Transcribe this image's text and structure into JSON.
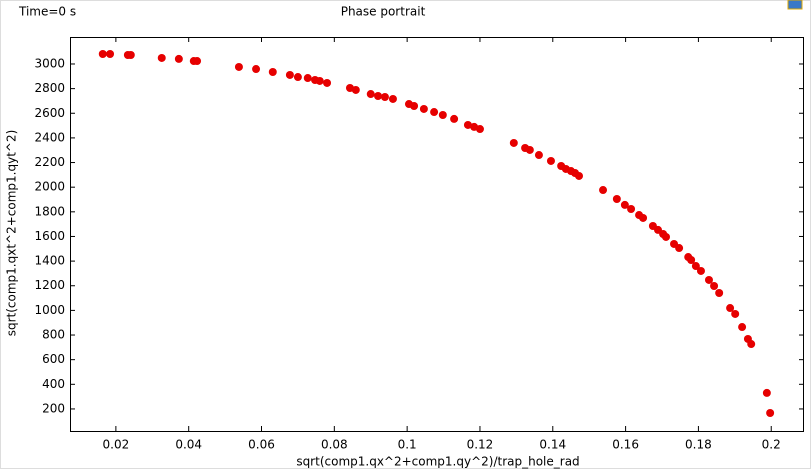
{
  "chart_data": {
    "type": "scatter",
    "title": "Phase portrait",
    "subtitle": "Time=0 s",
    "x_label": "sqrt(comp1.qx^2+comp1.qy^2)/trap_hole_rad",
    "y_label": "sqrt(comp1.qxt^2+comp1.qyt^2)",
    "color": "#e60000",
    "x": [
      0.0164,
      0.0184,
      0.0233,
      0.0241,
      0.0326,
      0.0373,
      0.0414,
      0.0423,
      0.0538,
      0.0585,
      0.0631,
      0.0678,
      0.07,
      0.0727,
      0.0747,
      0.076,
      0.078,
      0.0843,
      0.0859,
      0.09,
      0.092,
      0.0939,
      0.0961,
      0.1005,
      0.1019,
      0.1046,
      0.1074,
      0.1098,
      0.1129,
      0.1167,
      0.1184,
      0.12,
      0.1293,
      0.1324,
      0.1337,
      0.1362,
      0.1395,
      0.1423,
      0.1436,
      0.145,
      0.1461,
      0.1472,
      0.1538,
      0.1576,
      0.1598,
      0.1615,
      0.1637,
      0.1648,
      0.1675,
      0.1689,
      0.1703,
      0.1711,
      0.1733,
      0.1747,
      0.1772,
      0.178,
      0.1793,
      0.1807,
      0.1829,
      0.1843,
      0.1857,
      0.1887,
      0.1901,
      0.192,
      0.1936,
      0.1945,
      0.1988,
      0.1997
    ],
    "values": [
      3081,
      3081,
      3073,
      3073,
      3049,
      3041,
      3024,
      3024,
      2976,
      2959,
      2935,
      2911,
      2894,
      2886,
      2870,
      2862,
      2846,
      2805,
      2789,
      2756,
      2740,
      2732,
      2716,
      2675,
      2659,
      2635,
      2610,
      2586,
      2554,
      2505,
      2489,
      2472,
      2359,
      2318,
      2302,
      2261,
      2213,
      2172,
      2148,
      2131,
      2115,
      2091,
      1977,
      1904,
      1856,
      1823,
      1774,
      1750,
      1685,
      1653,
      1620,
      1596,
      1539,
      1506,
      1433,
      1409,
      1360,
      1320,
      1247,
      1198,
      1141,
      1019,
      971,
      865,
      768,
      727,
      330,
      167
    ],
    "xlim": [
      0.0074,
      0.209
    ],
    "ylim": [
      21,
      3219
    ],
    "xticks": [
      0.02,
      0.04,
      0.06,
      0.08,
      0.1,
      0.12,
      0.14,
      0.16,
      0.18,
      0.2
    ],
    "yticks": [
      200,
      400,
      600,
      800,
      1000,
      1200,
      1400,
      1600,
      1800,
      2000,
      2200,
      2400,
      2600,
      2800,
      3000
    ]
  }
}
